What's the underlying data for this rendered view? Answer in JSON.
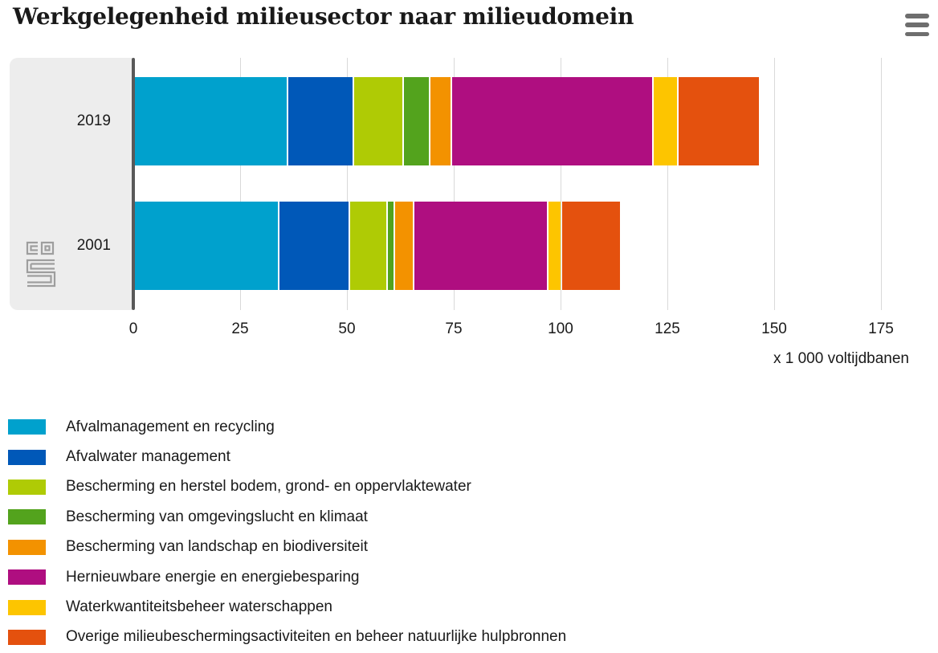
{
  "title": "Werkgelegenheid milieusector naar milieudomein",
  "icons": {
    "menu": "hamburger-menu-icon"
  },
  "branding": {
    "logo": "cbs-logo"
  },
  "axis": {
    "ticks": [
      0,
      25,
      50,
      75,
      100,
      125,
      150,
      175
    ],
    "unit_label": "x 1 000 voltijdbanen"
  },
  "chart_data": {
    "type": "bar",
    "orientation": "horizontal",
    "stacked": true,
    "title": "Werkgelegenheid milieusector naar milieudomein",
    "xlabel": "x 1 000 voltijdbanen",
    "xlim": [
      0,
      175
    ],
    "xticks": [
      0,
      25,
      50,
      75,
      100,
      125,
      150,
      175
    ],
    "grid": true,
    "legend_position": "bottom",
    "categories": [
      "2019",
      "2001"
    ],
    "series": [
      {
        "name": "Afvalmanagement en recycling",
        "color": "#00a1cd",
        "values": [
          35.5,
          33.4
        ]
      },
      {
        "name": "Afvalwater management",
        "color": "#0058b8",
        "values": [
          15.0,
          16.2
        ]
      },
      {
        "name": "Bescherming en herstel bodem, grond- en oppervlaktewater",
        "color": "#afcb05",
        "values": [
          11.4,
          8.4
        ]
      },
      {
        "name": "Bescherming van omgevingslucht en klimaat",
        "color": "#53a31d",
        "values": [
          5.8,
          1.4
        ]
      },
      {
        "name": "Bescherming van landschap en biodiversiteit",
        "color": "#f39200",
        "values": [
          4.7,
          4.1
        ]
      },
      {
        "name": "Hernieuwbare energie en energiebesparing",
        "color": "#af0e80",
        "values": [
          46.8,
          31.0
        ]
      },
      {
        "name": "Waterkwantiteitsbeheer waterschappen",
        "color": "#fdc500",
        "values": [
          5.5,
          2.8
        ]
      },
      {
        "name": "Overige milieubeschermingsactiviteiten en beheer natuurlijke hulpbronnen",
        "color": "#e4510e",
        "values": [
          18.8,
          13.7
        ]
      }
    ]
  }
}
